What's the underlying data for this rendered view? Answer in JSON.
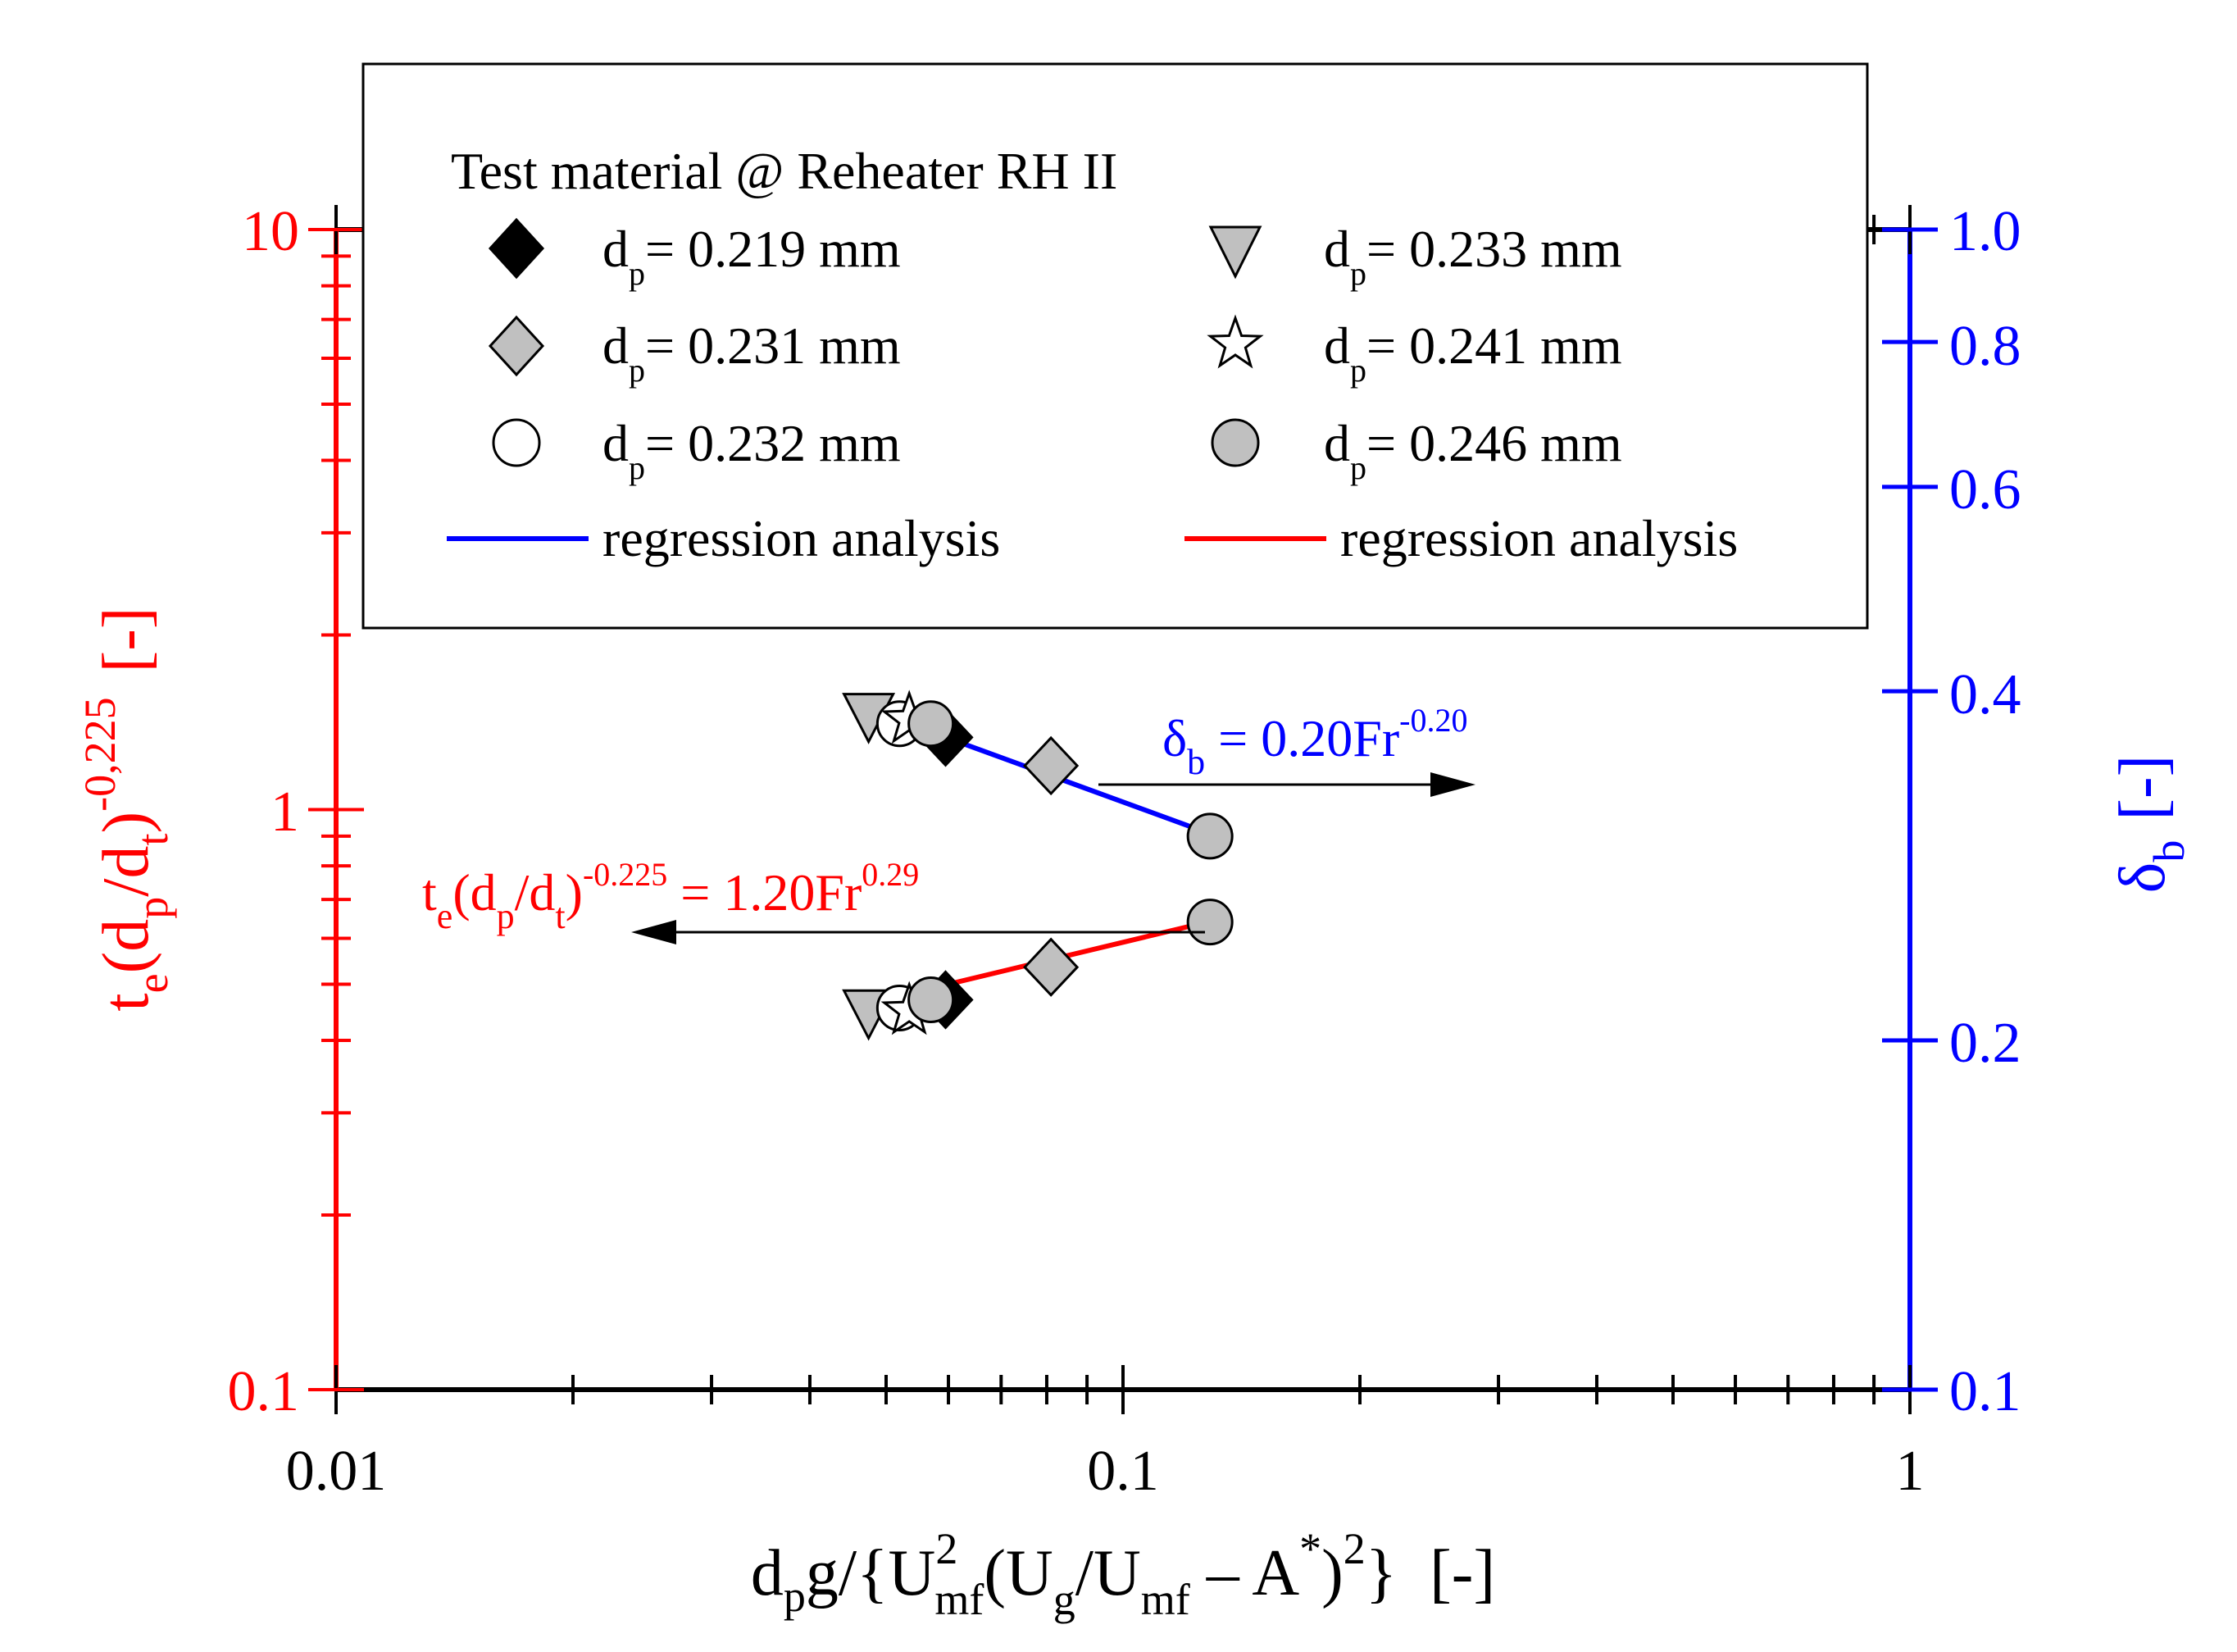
{
  "chart_data": {
    "type": "scatter",
    "x_axis": {
      "scale": "log",
      "range": [
        0.01,
        1
      ],
      "ticks": [
        "0.01",
        "0.1",
        "1"
      ],
      "label": {
        "main": "d",
        "sub_p": "p",
        "g": "g/{U",
        "sup_2": "2",
        "sub_mf": "mf",
        "mid": "(U",
        "sub_g": "g",
        "slash_u": "/U",
        "sub_mf2": "mf",
        "minus_a": " – A",
        "sup_star": "*",
        "close": ")",
        "sup_2b": "2",
        "brace": "}",
        "unit": "[-]"
      }
    },
    "left_axis": {
      "scale": "log",
      "range": [
        0.1,
        10
      ],
      "ticks": [
        "0.1",
        "1",
        "10"
      ],
      "color": "#ff0000",
      "label": {
        "t": "t",
        "sub_e": "e",
        "open": "(d",
        "sub_p": "p",
        "slash": "/d",
        "sub_t": "t",
        "close": ")",
        "sup": "-0,225",
        "unit": "[-]"
      }
    },
    "right_axis": {
      "scale": "log",
      "range": [
        0.1,
        1.0
      ],
      "ticks": [
        "0.1",
        "0.2",
        "0.4",
        "0.6",
        "0.8",
        "1.0"
      ],
      "color": "#0000ff",
      "label": {
        "delta": "δ",
        "sub_b": "b",
        "unit": "[-]"
      }
    },
    "legend": {
      "title": "Test material @ Reheater RH II",
      "position": "top",
      "entries": [
        {
          "marker": "diamond-black",
          "prefix": "d",
          "sub": "p",
          "text": "= 0.219 mm"
        },
        {
          "marker": "triangle-down-gray",
          "prefix": "d",
          "sub": "p",
          "text": "= 0.233 mm"
        },
        {
          "marker": "diamond-gray",
          "prefix": "d",
          "sub": "p",
          "text": "= 0.231 mm"
        },
        {
          "marker": "star-white",
          "prefix": "d",
          "sub": "p",
          "text": "= 0.241 mm"
        },
        {
          "marker": "circle-white",
          "prefix": "d",
          "sub": "p",
          "text": "= 0.232 mm"
        },
        {
          "marker": "circle-gray",
          "prefix": "d",
          "sub": "p",
          "text": "= 0.246 mm"
        }
      ],
      "lines": [
        {
          "color": "#0000ff",
          "label": "regression analysis"
        },
        {
          "color": "#ff0000",
          "label": "regression analysis"
        }
      ]
    },
    "series": [
      {
        "name": "d_p = 0.219 mm",
        "marker": "diamond-black",
        "x": [
          0.0595,
          0.0595
        ],
        "delta_b": [
          0.365,
          null
        ],
        "t_e": [
          null,
          0.47
        ]
      },
      {
        "name": "d_p = 0.231 mm",
        "marker": "diamond-gray",
        "x": [
          0.081,
          0.081
        ],
        "delta_b": [
          0.345,
          null
        ],
        "t_e": [
          null,
          0.535
        ]
      },
      {
        "name": "d_p = 0.232 mm",
        "marker": "circle-white",
        "x": [
          0.052,
          0.052
        ],
        "delta_b": [
          0.375,
          null
        ],
        "t_e": [
          null,
          0.455
        ]
      },
      {
        "name": "d_p = 0.233 mm",
        "marker": "triangle-down-gray",
        "x": [
          0.0475,
          0.0475
        ],
        "delta_b": [
          0.38,
          null
        ],
        "t_e": [
          null,
          0.445
        ]
      },
      {
        "name": "d_p = 0.241 mm",
        "marker": "star-white",
        "x": [
          0.0535,
          0.0535
        ],
        "delta_b": [
          0.378,
          null
        ],
        "t_e": [
          null,
          0.45
        ]
      },
      {
        "name": "d_p = 0.246 mm",
        "marker": "circle-gray",
        "x": [
          0.057,
          0.129
        ],
        "delta_b": [
          0.375,
          0.3
        ],
        "t_e": [
          0.47,
          0.64
        ]
      }
    ],
    "regression": [
      {
        "axis": "right",
        "color": "#0000ff",
        "x": [
          0.048,
          0.128
        ],
        "y": [
          0.385,
          0.302
        ]
      },
      {
        "axis": "left",
        "color": "#ff0000",
        "x": [
          0.048,
          0.128
        ],
        "y": [
          0.465,
          0.64
        ]
      }
    ],
    "annotations": {
      "delta": {
        "delta": "δ",
        "sub": "b",
        "eq": " = 0.20Fr",
        "sup": "-0.20"
      },
      "t": {
        "t": "t",
        "sub_e": "e",
        "open": "(d",
        "sub_p": "p",
        "slash": "/d",
        "sub_t": "t",
        "close": ")",
        "sup": "-0.225",
        "eq": " = 1.20Fr",
        "sup2": "0.29"
      }
    }
  },
  "colors": {
    "left": "#ff0000",
    "right": "#0000ff",
    "gray_fill": "#c0c0c0"
  }
}
